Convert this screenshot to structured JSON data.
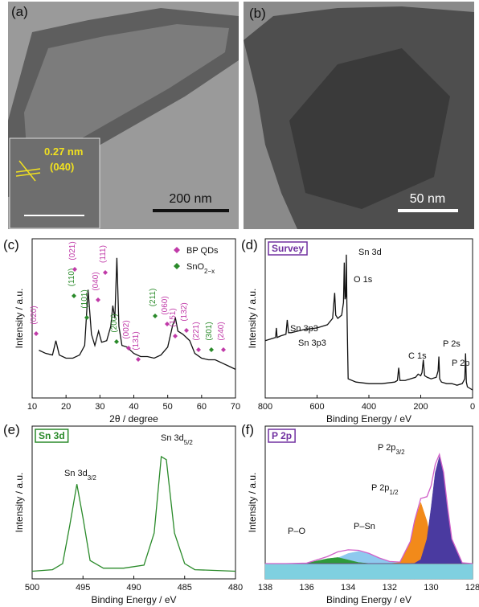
{
  "panels": {
    "a": {
      "label": "(a)",
      "inset_text": [
        "0.27 nm",
        "(040)"
      ],
      "scale_bar": "200 nm"
    },
    "b": {
      "label": "(b)",
      "scale_bar": "50 nm"
    }
  },
  "chart_data": [
    {
      "type": "line",
      "panel_label": "(c)",
      "xlabel": "2θ / degree",
      "ylabel": "Intensity / a.u.",
      "xlim": [
        10,
        70
      ],
      "xticks": [
        10,
        20,
        30,
        40,
        50,
        60,
        70
      ],
      "ylim": [
        0,
        100
      ],
      "x": [
        12,
        14,
        16,
        17,
        18,
        20,
        22,
        24,
        25.5,
        26.5,
        27.5,
        28.5,
        29.6,
        30.5,
        32,
        33.2,
        33.8,
        34.4,
        35,
        35.6,
        36.5,
        38,
        40,
        42,
        44,
        46,
        48,
        50,
        51.5,
        52.3,
        53,
        54.5,
        56.5,
        58,
        60,
        62,
        64,
        66,
        68,
        70
      ],
      "series": [
        {
          "color": "#111111",
          "values": [
            30,
            28,
            27,
            36,
            27,
            25,
            25,
            27,
            33,
            68,
            40,
            33,
            42,
            35,
            36,
            45,
            58,
            50,
            88,
            45,
            33,
            32,
            28,
            26,
            26,
            25,
            27,
            32,
            46,
            50,
            42,
            40,
            36,
            28,
            25,
            24,
            24,
            22,
            20,
            18
          ]
        }
      ],
      "legend": [
        {
          "text": "BP QDs",
          "color": "#c03aa8"
        },
        {
          "text": {
            "main": "SnO",
            "sub": "2−x"
          },
          "color": "#2a8a2a"
        }
      ],
      "annotations": [
        {
          "text": "(020)",
          "color": "#c03aa8"
        },
        {
          "text": "(110)",
          "color": "#2a8a2a"
        },
        {
          "text": "(021)",
          "color": "#c03aa8"
        },
        {
          "text": "(101)",
          "color": "#2a8a2a"
        },
        {
          "text": "(040)",
          "color": "#c03aa8"
        },
        {
          "text": "(111)",
          "color": "#c03aa8"
        },
        {
          "text": "(200)",
          "color": "#2a8a2a"
        },
        {
          "text": "(002)",
          "color": "#c03aa8"
        },
        {
          "text": "(131)",
          "color": "#c03aa8"
        },
        {
          "text": "(211)",
          "color": "#2a8a2a"
        },
        {
          "text": "(060)",
          "color": "#c03aa8"
        },
        {
          "text": "(151)",
          "color": "#c03aa8"
        },
        {
          "text": "(132)",
          "color": "#c03aa8"
        },
        {
          "text": "(221)",
          "color": "#c03aa8"
        },
        {
          "text": "(301)",
          "color": "#2a8a2a"
        },
        {
          "text": "(240)",
          "color": "#c03aa8"
        }
      ]
    },
    {
      "type": "line",
      "panel_label": "(d)",
      "box_title": "Survey",
      "box_color": "#7030a0",
      "xlabel": "Binding Energy / eV",
      "ylabel": "Intensity / a.u.",
      "xlim": [
        800,
        0
      ],
      "xticks": [
        800,
        600,
        400,
        200,
        0
      ],
      "ylim": [
        0,
        100
      ],
      "x": [
        800,
        780,
        760,
        757,
        754,
        740,
        720,
        715,
        710,
        700,
        650,
        600,
        560,
        540,
        532,
        528,
        520,
        505,
        498,
        495,
        492,
        489,
        487,
        485,
        482,
        480,
        450,
        400,
        350,
        300,
        290,
        285,
        280,
        260,
        240,
        220,
        210,
        200,
        195,
        190,
        185,
        175,
        160,
        140,
        133,
        130,
        127,
        120,
        100,
        80,
        60,
        40,
        30,
        27,
        24,
        20,
        10,
        0
      ],
      "series": [
        {
          "color": "#111111",
          "values": [
            36,
            37,
            38,
            44,
            38,
            39,
            40,
            49,
            41,
            41,
            43,
            44,
            46,
            50,
            66,
            52,
            50,
            52,
            60,
            85,
            62,
            64,
            90,
            60,
            30,
            12,
            10,
            9,
            9,
            10,
            11,
            19,
            11,
            11,
            12,
            13,
            15,
            14,
            16,
            24,
            14,
            13,
            12,
            13,
            17,
            26,
            12,
            10,
            9,
            9,
            8,
            9,
            12,
            28,
            10,
            7,
            6,
            5
          ]
        }
      ],
      "annotations": [
        {
          "text": "Sn 3d"
        },
        {
          "text": "O 1s"
        },
        {
          "text": "Sn 3p3"
        },
        {
          "text": "Sn 3p3"
        },
        {
          "text": "C 1s"
        },
        {
          "text": "P 2s"
        },
        {
          "text": "P 2p"
        }
      ]
    },
    {
      "type": "line",
      "panel_label": "(e)",
      "box_title": "Sn 3d",
      "box_color": "#2a8a2a",
      "xlabel": "Binding Energy / eV",
      "ylabel": "Intensity / a.u.",
      "xlim": [
        500,
        480
      ],
      "xticks": [
        500,
        495,
        490,
        485,
        480
      ],
      "ylim": [
        0,
        100
      ],
      "x": [
        500,
        498,
        497,
        496.3,
        495.6,
        495,
        494.3,
        493,
        491,
        489,
        488,
        487.3,
        486.8,
        486,
        485,
        484,
        480
      ],
      "series": [
        {
          "color": "#2a8a2a",
          "values": [
            5,
            6,
            10,
            35,
            62,
            40,
            12,
            7,
            7,
            9,
            30,
            80,
            78,
            30,
            10,
            6,
            5
          ]
        }
      ],
      "annotations": [
        {
          "text": {
            "main": "Sn 3d",
            "sub": "3/2"
          }
        },
        {
          "text": {
            "main": "Sn 3d",
            "sub": "5/2"
          }
        }
      ]
    },
    {
      "type": "line",
      "panel_label": "(f)",
      "box_title": "P 2p",
      "box_color": "#7030a0",
      "xlabel": "Binding Energy / eV",
      "ylabel": "Intensity / a.u.",
      "xlim": [
        138,
        128
      ],
      "xticks": [
        138,
        136,
        134,
        132,
        130,
        128
      ],
      "ylim": [
        0,
        100
      ],
      "x": [
        138,
        137,
        136,
        135,
        134.5,
        134,
        133.5,
        133,
        132.5,
        132,
        131.5,
        131,
        130.8,
        130.5,
        130.2,
        130,
        129.8,
        129.6,
        129.4,
        129.2,
        129,
        128.5,
        128
      ],
      "series": [
        {
          "color": "#7fd0e0",
          "fill": true,
          "values": [
            10,
            10,
            10,
            10,
            10,
            10,
            10,
            10,
            10,
            10,
            10,
            10,
            10,
            10,
            10,
            10,
            10,
            10,
            10,
            10,
            10,
            10,
            10
          ]
        },
        {
          "color": "#8ec9ee",
          "fill": true,
          "values": [
            10,
            10,
            10.1,
            11.4,
            13.7,
            16.6,
            18,
            16.6,
            13.7,
            11.4,
            10.4,
            10.1,
            10,
            10,
            10,
            10,
            10,
            10,
            10,
            10,
            10,
            10,
            10
          ]
        },
        {
          "color": "#2e9a3a",
          "fill": true,
          "values": [
            10,
            10,
            10.3,
            13.2,
            14,
            12.4,
            10.7,
            10.1,
            10,
            10,
            10,
            10,
            10,
            10,
            10,
            10,
            10,
            10,
            10,
            10,
            10,
            10,
            10
          ]
        },
        {
          "color": "#f28a1a",
          "fill": true,
          "values": [
            10,
            10,
            10,
            10,
            10,
            10,
            10,
            10,
            10,
            10,
            10.7,
            24.4,
            37.7,
            50,
            37.7,
            24.4,
            15.4,
            11.5,
            10.3,
            10,
            10,
            10,
            10
          ]
        },
        {
          "color": "#4a3aa0",
          "fill": true,
          "values": [
            10,
            10,
            10,
            10,
            10,
            10,
            10,
            10,
            10,
            10,
            10,
            10,
            10.2,
            12.6,
            26.1,
            46.5,
            69.5,
            80,
            69.5,
            46.5,
            26.1,
            10.5,
            10
          ]
        },
        {
          "color": "#d060c8",
          "values": [
            10,
            10,
            10.3,
            14.6,
            17.7,
            19,
            18.7,
            16.7,
            13.7,
            11.4,
            11,
            24.5,
            37.9,
            52.6,
            53.8,
            60.9,
            74.9,
            81.5,
            69.8,
            46.5,
            26.1,
            10.5,
            10
          ]
        }
      ],
      "annotations": [
        {
          "text": {
            "main": "P 2p",
            "sub": "3/2"
          }
        },
        {
          "text": {
            "main": "P 2p",
            "sub": "1/2"
          }
        },
        {
          "text": "P–Sn"
        },
        {
          "text": "P–O"
        }
      ]
    }
  ]
}
